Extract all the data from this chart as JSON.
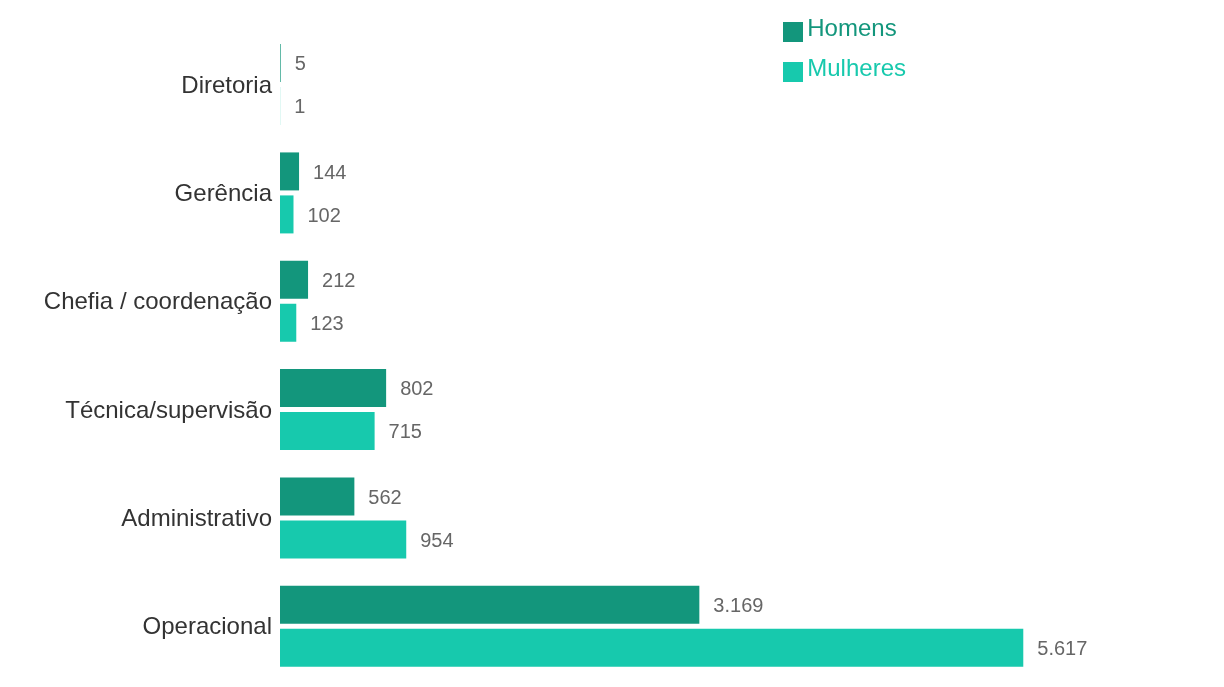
{
  "chart_data": {
    "type": "bar",
    "orientation": "horizontal",
    "categories": [
      "Diretoria",
      "Gerência",
      "Chefia / coordenação",
      "Técnica/supervisão",
      "Administrativo",
      "Operacional"
    ],
    "series": [
      {
        "name": "Homens",
        "color": "#13967c",
        "values": [
          5,
          144,
          212,
          802,
          562,
          3169
        ],
        "value_labels": [
          "5",
          "144",
          "212",
          "802",
          "562",
          "3.169"
        ]
      },
      {
        "name": "Mulheres",
        "color": "#17c9ad",
        "values": [
          1,
          102,
          123,
          715,
          954,
          5617
        ],
        "value_labels": [
          "1",
          "102",
          "123",
          "715",
          "954",
          "5.617"
        ]
      }
    ],
    "legend": "top right",
    "grid": false
  }
}
